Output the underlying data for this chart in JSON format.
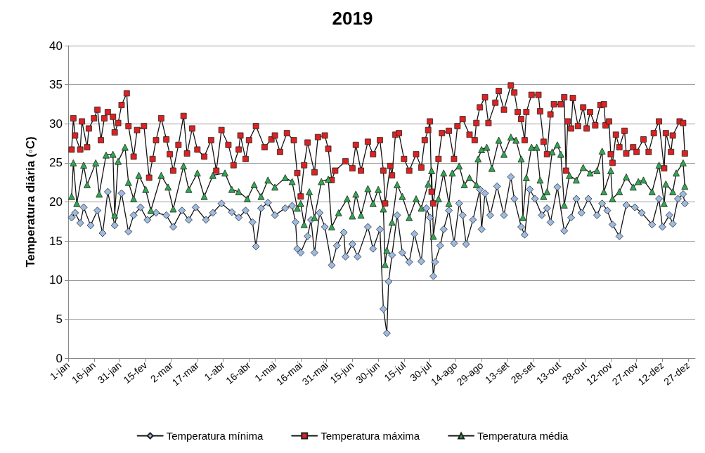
{
  "chart_data": {
    "type": "line",
    "title": "2019",
    "ylabel": "Temperatura diária (◦C)",
    "xlim": [
      "--01-01",
      "--12-31"
    ],
    "xticks": [
      {
        "value": "--01-01",
        "label": "1-jan"
      },
      {
        "value": "--01-16",
        "label": "16-jan"
      },
      {
        "value": "--01-31",
        "label": "31-jan"
      },
      {
        "value": "--02-15",
        "label": "15-fev"
      },
      {
        "value": "--03-02",
        "label": "2-mar"
      },
      {
        "value": "--03-17",
        "label": "17-mar"
      },
      {
        "value": "--04-01",
        "label": "1-abr"
      },
      {
        "value": "--04-16",
        "label": "16-abr"
      },
      {
        "value": "--05-01",
        "label": "1-mai"
      },
      {
        "value": "--05-16",
        "label": "16-mai"
      },
      {
        "value": "--05-31",
        "label": "31-mai"
      },
      {
        "value": "--06-15",
        "label": "15-jun"
      },
      {
        "value": "--06-30",
        "label": "30-jun"
      },
      {
        "value": "--07-15",
        "label": "15-jul"
      },
      {
        "value": "--07-30",
        "label": "30-jul"
      },
      {
        "value": "--08-14",
        "label": "14-ago"
      },
      {
        "value": "--08-29",
        "label": "29-ago"
      },
      {
        "value": "--09-13",
        "label": "13-set"
      },
      {
        "value": "--09-28",
        "label": "28-set"
      },
      {
        "value": "--10-13",
        "label": "13-out"
      },
      {
        "value": "--10-28",
        "label": "28-out"
      },
      {
        "value": "--11-12",
        "label": "12-nov"
      },
      {
        "value": "--11-27",
        "label": "27-nov"
      },
      {
        "value": "--12-12",
        "label": "12-dez"
      },
      {
        "value": "--12-27",
        "label": "27-dez"
      }
    ],
    "ylim": [
      0,
      40
    ],
    "yticks": [
      0,
      5,
      10,
      15,
      20,
      25,
      30,
      35,
      40
    ],
    "grid": "y",
    "legend": "bottom",
    "line_style": "solid",
    "series": [
      {
        "name": "Temperatura mínima",
        "color": "#9dbbe3",
        "marker": "diamond",
        "x": [
          "--01-03",
          "--01-05",
          "--01-08",
          "--01-10",
          "--01-14",
          "--01-18",
          "--01-21",
          "--01-24",
          "--01-28",
          "--02-01",
          "--02-05",
          "--02-08",
          "--02-12",
          "--02-16",
          "--02-21",
          "--02-27",
          "--03-03",
          "--03-08",
          "--03-12",
          "--03-16",
          "--03-22",
          "--03-26",
          "--03-31",
          "--04-06",
          "--04-10",
          "--04-14",
          "--04-18",
          "--04-20",
          "--04-23",
          "--04-27",
          "--05-01",
          "--05-07",
          "--05-11",
          "--05-13",
          "--05-14",
          "--05-16",
          "--05-20",
          "--05-22",
          "--05-24",
          "--05-27",
          "--05-30",
          "--06-03",
          "--06-06",
          "--06-10",
          "--06-11",
          "--06-15",
          "--06-18",
          "--06-24",
          "--06-27",
          "--07-01",
          "--07-03",
          "--07-05",
          "--07-06",
          "--07-08",
          "--07-11",
          "--07-14",
          "--07-18",
          "--07-21",
          "--07-25",
          "--07-28",
          "--07-30",
          "--08-01",
          "--08-02",
          "--08-05",
          "--08-07",
          "--08-10",
          "--08-13",
          "--08-16",
          "--08-18",
          "--08-20",
          "--08-24",
          "--08-28",
          "--08-29",
          "--08-31",
          "--09-03",
          "--09-07",
          "--09-11",
          "--09-15",
          "--09-17",
          "--09-21",
          "--09-23",
          "--09-26",
          "--09-29",
          "--10-03",
          "--10-06",
          "--10-08",
          "--10-12",
          "--10-16",
          "--10-20",
          "--10-23",
          "--10-26",
          "--10-30",
          "--11-04",
          "--11-07",
          "--11-10",
          "--11-13",
          "--11-17",
          "--11-21",
          "--11-26",
          "--11-30",
          "--12-06",
          "--12-10",
          "--12-12",
          "--12-16",
          "--12-18",
          "--12-21",
          "--12-24",
          "--12-25"
        ],
        "values": [
          18.0,
          18.6,
          17.3,
          19.3,
          17.0,
          18.9,
          16.0,
          21.3,
          17.0,
          21.1,
          16.2,
          18.3,
          19.3,
          17.7,
          18.6,
          18.3,
          16.8,
          18.9,
          17.7,
          19.3,
          17.7,
          18.6,
          19.8,
          18.7,
          18.0,
          18.9,
          17.4,
          14.3,
          19.2,
          19.9,
          18.3,
          19.2,
          19.5,
          17.4,
          14.0,
          13.5,
          15.6,
          17.7,
          13.5,
          18.6,
          16.8,
          11.9,
          14.4,
          16.1,
          13.0,
          14.6,
          13.0,
          16.8,
          14.0,
          16.5,
          6.3,
          3.2,
          9.8,
          13.2,
          18.3,
          13.5,
          12.3,
          15.9,
          12.4,
          19.2,
          18.0,
          10.5,
          12.3,
          14.4,
          16.5,
          18.9,
          14.7,
          19.8,
          18.3,
          14.6,
          17.7,
          21.6,
          16.5,
          21.1,
          18.3,
          22.0,
          18.3,
          23.2,
          20.4,
          16.8,
          15.8,
          21.6,
          20.4,
          18.3,
          19.2,
          17.4,
          21.9,
          16.3,
          18.0,
          20.4,
          18.6,
          20.4,
          18.3,
          19.8,
          18.9,
          17.1,
          15.6,
          19.6,
          19.3,
          18.6,
          17.1,
          20.4,
          16.8,
          18.3,
          17.2,
          20.4,
          21.0,
          19.8
        ]
      },
      {
        "name": "Temperatura máxima",
        "color": "#dd2222",
        "marker": "square",
        "x": [
          "--01-03",
          "--01-04",
          "--01-05",
          "--01-08",
          "--01-09",
          "--01-12",
          "--01-13",
          "--01-16",
          "--01-18",
          "--01-20",
          "--01-22",
          "--01-24",
          "--01-27",
          "--01-28",
          "--01-30",
          "--02-01",
          "--02-04",
          "--02-05",
          "--02-08",
          "--02-10",
          "--02-14",
          "--02-17",
          "--02-19",
          "--02-21",
          "--02-24",
          "--02-27",
          "--03-01",
          "--03-03",
          "--03-06",
          "--03-09",
          "--03-11",
          "--03-14",
          "--03-17",
          "--03-21",
          "--03-25",
          "--03-28",
          "--03-31",
          "--04-04",
          "--04-07",
          "--04-10",
          "--04-11",
          "--04-14",
          "--04-16",
          "--04-20",
          "--04-25",
          "--04-29",
          "--05-01",
          "--05-04",
          "--05-08",
          "--05-12",
          "--05-14",
          "--05-16",
          "--05-18",
          "--05-20",
          "--05-24",
          "--05-26",
          "--05-30",
          "--06-01",
          "--06-03",
          "--06-05",
          "--06-11",
          "--06-15",
          "--06-17",
          "--06-20",
          "--06-24",
          "--06-27",
          "--07-01",
          "--07-03",
          "--07-04",
          "--07-07",
          "--07-08",
          "--07-10",
          "--07-12",
          "--07-15",
          "--07-18",
          "--07-22",
          "--07-25",
          "--07-27",
          "--07-29",
          "--07-30",
          "--07-31",
          "--08-01",
          "--08-04",
          "--08-06",
          "--08-10",
          "--08-13",
          "--08-15",
          "--08-18",
          "--08-22",
          "--08-25",
          "--08-26",
          "--08-28",
          "--08-31",
          "--09-02",
          "--09-06",
          "--09-08",
          "--09-11",
          "--09-15",
          "--09-17",
          "--09-19",
          "--09-21",
          "--09-23",
          "--09-24",
          "--09-27",
          "--10-01",
          "--10-02",
          "--10-04",
          "--10-06",
          "--10-08",
          "--10-10",
          "--10-14",
          "--10-16",
          "--10-17",
          "--10-18",
          "--10-20",
          "--10-21",
          "--10-24",
          "--10-27",
          "--10-29",
          "--10-31",
          "--11-03",
          "--11-06",
          "--11-08",
          "--11-09",
          "--11-11",
          "--11-12",
          "--11-13",
          "--11-15",
          "--11-17",
          "--11-20",
          "--11-21",
          "--11-25",
          "--11-27",
          "--12-01",
          "--12-04",
          "--12-07",
          "--12-10",
          "--12-13",
          "--12-14",
          "--12-17",
          "--12-18",
          "--12-22",
          "--12-24",
          "--12-25"
        ],
        "values": [
          26.7,
          30.7,
          28.5,
          26.7,
          30.3,
          27.0,
          29.4,
          30.7,
          31.8,
          27.9,
          30.7,
          31.5,
          30.9,
          28.9,
          30.1,
          32.4,
          33.9,
          29.7,
          25.8,
          29.2,
          29.7,
          23.1,
          25.5,
          27.9,
          30.7,
          28.0,
          26.1,
          24.0,
          27.3,
          31.0,
          26.2,
          29.4,
          26.7,
          25.8,
          27.9,
          24.0,
          29.2,
          27.3,
          24.7,
          26.7,
          28.5,
          25.5,
          27.9,
          29.7,
          27.0,
          28.0,
          28.5,
          26.4,
          28.8,
          27.9,
          23.7,
          20.7,
          24.7,
          27.6,
          23.8,
          28.3,
          28.5,
          26.8,
          22.8,
          24.0,
          25.2,
          24.3,
          27.3,
          24.0,
          27.7,
          26.1,
          27.9,
          24.0,
          19.8,
          24.6,
          23.4,
          28.6,
          28.8,
          25.5,
          24.0,
          26.1,
          24.4,
          27.9,
          29.2,
          30.3,
          21.3,
          19.8,
          25.5,
          28.8,
          29.1,
          25.5,
          29.7,
          30.6,
          28.6,
          27.9,
          30.1,
          32.1,
          33.4,
          30.1,
          32.7,
          34.2,
          31.8,
          34.9,
          34.0,
          31.5,
          30.6,
          27.9,
          31.5,
          33.7,
          33.7,
          31.6,
          27.7,
          26.1,
          31.2,
          32.5,
          32.5,
          33.4,
          24.0,
          30.3,
          29.4,
          33.3,
          29.7,
          32.1,
          29.4,
          31.5,
          29.8,
          32.4,
          32.5,
          29.8,
          30.3,
          26.1,
          25.0,
          28.6,
          27.0,
          29.1,
          26.2,
          27.0,
          26.4,
          28.0,
          26.4,
          28.8,
          30.3,
          24.3,
          28.8,
          26.4,
          28.5,
          30.3,
          30.1,
          26.2
        ]
      },
      {
        "name": "Temperatura média",
        "color": "#2fa84f",
        "marker": "triangle",
        "x": [
          "--01-03",
          "--01-04",
          "--01-06",
          "--01-10",
          "--01-12",
          "--01-17",
          "--01-19",
          "--01-23",
          "--01-27",
          "--01-28",
          "--01-30",
          "--02-03",
          "--02-05",
          "--02-08",
          "--02-11",
          "--02-15",
          "--02-18",
          "--02-24",
          "--02-28",
          "--03-03",
          "--03-09",
          "--03-12",
          "--03-17",
          "--03-21",
          "--03-26",
          "--04-02",
          "--04-06",
          "--04-10",
          "--04-15",
          "--04-19",
          "--04-23",
          "--04-27",
          "--05-01",
          "--05-07",
          "--05-11",
          "--05-14",
          "--05-16",
          "--05-18",
          "--05-21",
          "--05-24",
          "--05-28",
          "--06-01",
          "--06-03",
          "--06-07",
          "--06-12",
          "--06-15",
          "--06-17",
          "--06-20",
          "--06-24",
          "--06-27",
          "--06-30",
          "--07-03",
          "--07-04",
          "--07-05",
          "--07-08",
          "--07-11",
          "--07-14",
          "--07-18",
          "--07-22",
          "--07-25",
          "--07-29",
          "--07-31",
          "--08-01",
          "--08-04",
          "--08-07",
          "--08-10",
          "--08-12",
          "--08-16",
          "--08-19",
          "--08-22",
          "--08-26",
          "--08-27",
          "--08-29",
          "--09-01",
          "--09-04",
          "--09-08",
          "--09-11",
          "--09-15",
          "--09-18",
          "--09-21",
          "--09-22",
          "--09-24",
          "--09-27",
          "--09-30",
          "--10-02",
          "--10-04",
          "--10-06",
          "--10-09",
          "--10-12",
          "--10-14",
          "--10-16",
          "--10-19",
          "--10-23",
          "--10-27",
          "--10-31",
          "--11-04",
          "--11-07",
          "--11-08",
          "--11-12",
          "--11-13",
          "--11-17",
          "--11-21",
          "--11-25",
          "--11-28",
          "--12-01",
          "--12-06",
          "--12-10",
          "--12-13",
          "--12-14",
          "--12-18",
          "--12-20",
          "--12-24",
          "--12-25"
        ],
        "values": [
          20.7,
          25.0,
          19.8,
          24.7,
          22.2,
          25.0,
          21.0,
          26.0,
          26.1,
          18.3,
          25.2,
          27.0,
          22.5,
          20.4,
          23.4,
          21.6,
          18.9,
          23.4,
          21.9,
          19.1,
          24.6,
          21.6,
          23.7,
          20.7,
          23.4,
          23.7,
          21.6,
          21.3,
          20.4,
          22.2,
          20.7,
          22.8,
          21.9,
          23.1,
          22.6,
          19.2,
          19.8,
          17.1,
          21.3,
          18.0,
          22.6,
          22.9,
          16.8,
          18.6,
          20.4,
          18.2,
          21.0,
          18.3,
          21.7,
          19.8,
          21.6,
          19.1,
          12.0,
          13.8,
          17.4,
          22.2,
          20.7,
          18.0,
          20.4,
          19.2,
          22.3,
          24.0,
          15.6,
          20.4,
          23.7,
          19.8,
          23.7,
          24.6,
          22.2,
          23.1,
          22.2,
          25.5,
          26.7,
          27.0,
          24.3,
          27.9,
          26.1,
          28.3,
          27.9,
          25.5,
          18.0,
          23.1,
          27.0,
          27.0,
          22.8,
          20.7,
          21.3,
          26.4,
          27.3,
          26.1,
          19.6,
          23.4,
          22.8,
          24.4,
          23.7,
          24.0,
          26.5,
          21.3,
          24.0,
          20.4,
          21.3,
          23.2,
          21.9,
          22.6,
          22.8,
          21.3,
          24.7,
          19.8,
          22.3,
          21.3,
          23.7,
          25.0,
          22.0
        ]
      }
    ]
  }
}
